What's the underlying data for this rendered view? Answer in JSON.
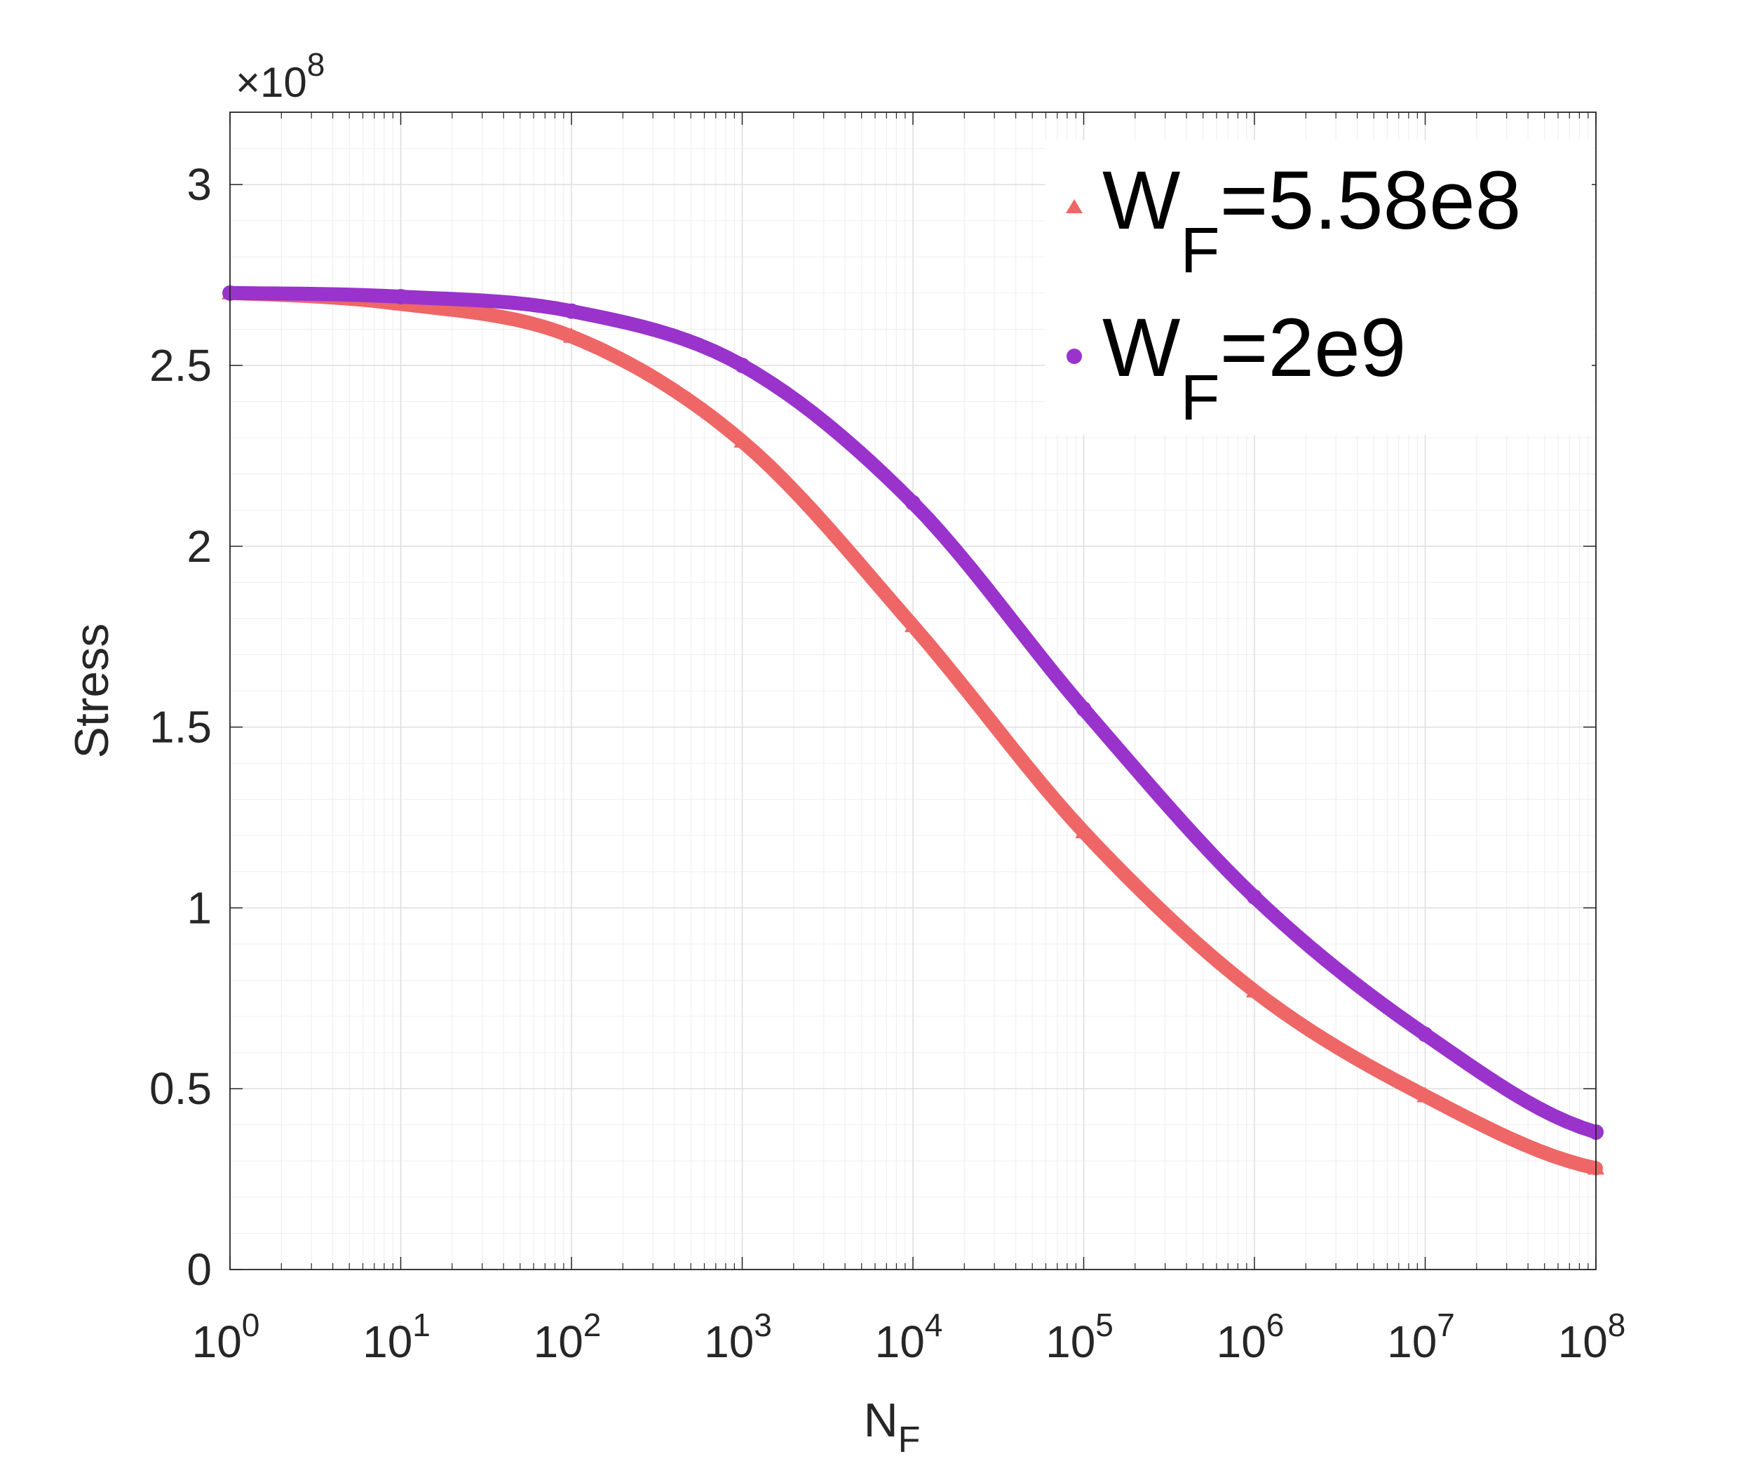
{
  "chart_data": {
    "type": "line",
    "title": "",
    "xlabel": "N",
    "xlabel_sub": "F",
    "ylabel": "Stress",
    "y_exponent_label": "×10",
    "y_exponent_power": "8",
    "x_scale": "log",
    "xlim": [
      1,
      100000000
    ],
    "ylim": [
      0,
      320000000
    ],
    "grid": true,
    "minor_grid": true,
    "legend_position": "top-right",
    "x_ticks": [
      {
        "base": "10",
        "exp": "0",
        "value": 1
      },
      {
        "base": "10",
        "exp": "1",
        "value": 10
      },
      {
        "base": "10",
        "exp": "2",
        "value": 100
      },
      {
        "base": "10",
        "exp": "3",
        "value": 1000
      },
      {
        "base": "10",
        "exp": "4",
        "value": 10000
      },
      {
        "base": "10",
        "exp": "5",
        "value": 100000
      },
      {
        "base": "10",
        "exp": "6",
        "value": 1000000
      },
      {
        "base": "10",
        "exp": "7",
        "value": 10000000
      },
      {
        "base": "10",
        "exp": "8",
        "value": 100000000
      }
    ],
    "y_ticks": [
      {
        "label": "0",
        "value": 0
      },
      {
        "label": "0.5",
        "value": 50000000
      },
      {
        "label": "1",
        "value": 100000000
      },
      {
        "label": "1.5",
        "value": 150000000
      },
      {
        "label": "2",
        "value": 200000000
      },
      {
        "label": "2.5",
        "value": 250000000
      },
      {
        "label": "3",
        "value": 300000000
      }
    ],
    "series": [
      {
        "name": "W_F=5.58e8",
        "legend_main": "W",
        "legend_sub": "F",
        "legend_rest": "=5.58e8",
        "color": "#EE6666",
        "marker": "triangle",
        "x": [
          1,
          10,
          100,
          1000,
          10000,
          100000,
          1000000,
          10000000,
          100000000
        ],
        "y": [
          270000000,
          267000000,
          258000000,
          229000000,
          178000000,
          121000000,
          77000000,
          48000000,
          28000000
        ]
      },
      {
        "name": "W_F=2e9",
        "legend_main": "W",
        "legend_sub": "F",
        "legend_rest": "=2e9",
        "color": "#9933CC",
        "marker": "circle",
        "x": [
          1,
          10,
          100,
          1000,
          10000,
          100000,
          1000000,
          10000000,
          100000000
        ],
        "y": [
          270000000,
          269000000,
          265000000,
          250000000,
          212000000,
          155000000,
          103000000,
          65000000,
          38000000
        ]
      }
    ]
  }
}
